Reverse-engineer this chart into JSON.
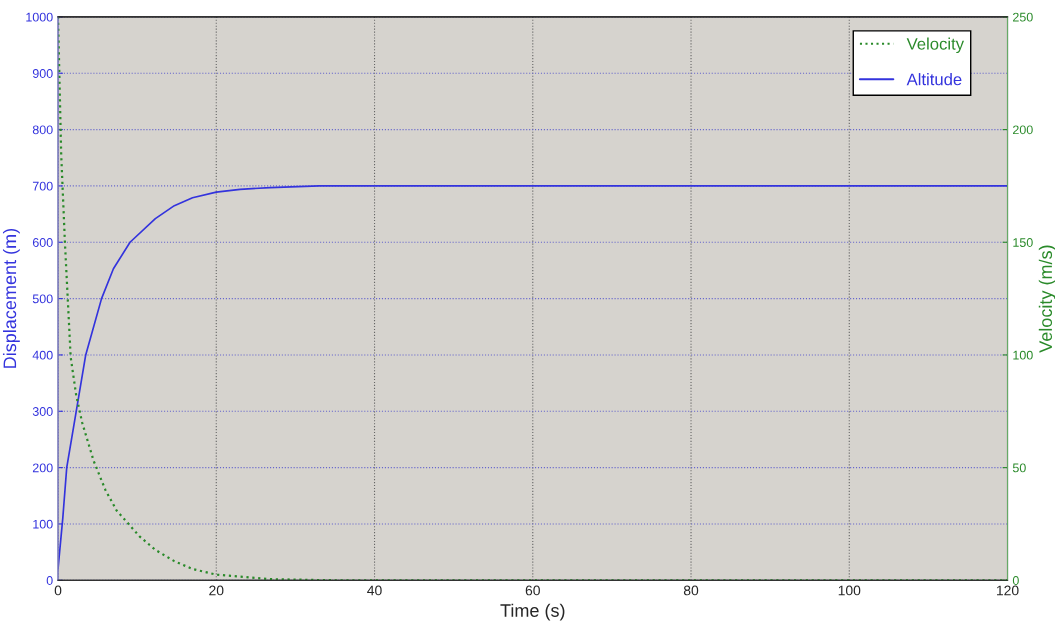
{
  "chart_data": {
    "type": "line",
    "xlabel": "Time (s)",
    "ylabel": "Displacement (m)",
    "y2label": "Velocity (m/s)",
    "xlim": [
      0,
      120
    ],
    "xticks": [
      0,
      20,
      40,
      60,
      80,
      100,
      120
    ],
    "ylim": [
      0,
      1000
    ],
    "yticks": [
      0,
      100,
      200,
      300,
      400,
      500,
      600,
      700,
      800,
      900,
      1000
    ],
    "y2lim": [
      0,
      250
    ],
    "y2ticks": [
      0,
      50,
      100,
      150,
      200,
      250
    ],
    "grid": true,
    "legend": "top right",
    "series": [
      {
        "name": "Velocity",
        "color": "#2a8a2a",
        "axis": "y2",
        "line_style": "dotted",
        "x": [
          0,
          0.4,
          0.87,
          1.6,
          2.3,
          3.05,
          4.5,
          6,
          7.4,
          10.3,
          12.3,
          14.7,
          17,
          20,
          26.8,
          35,
          120
        ],
        "values": [
          250,
          189,
          150,
          99,
          82,
          70,
          53,
          40,
          31,
          19.5,
          13.5,
          8.5,
          5,
          2.5,
          0.5,
          0,
          0
        ]
      },
      {
        "name": "Altitude",
        "color": "#3333dd",
        "line_style": "solid",
        "x": [
          0,
          0.6,
          1.1,
          2.3,
          3.5,
          5.5,
          7,
          9.1,
          12.3,
          14.7,
          17,
          20,
          23,
          26.8,
          33,
          120
        ],
        "values": [
          20,
          110,
          200,
          300,
          400,
          500,
          553,
          600,
          642,
          665,
          679,
          689,
          694,
          697,
          700,
          700
        ]
      }
    ]
  }
}
